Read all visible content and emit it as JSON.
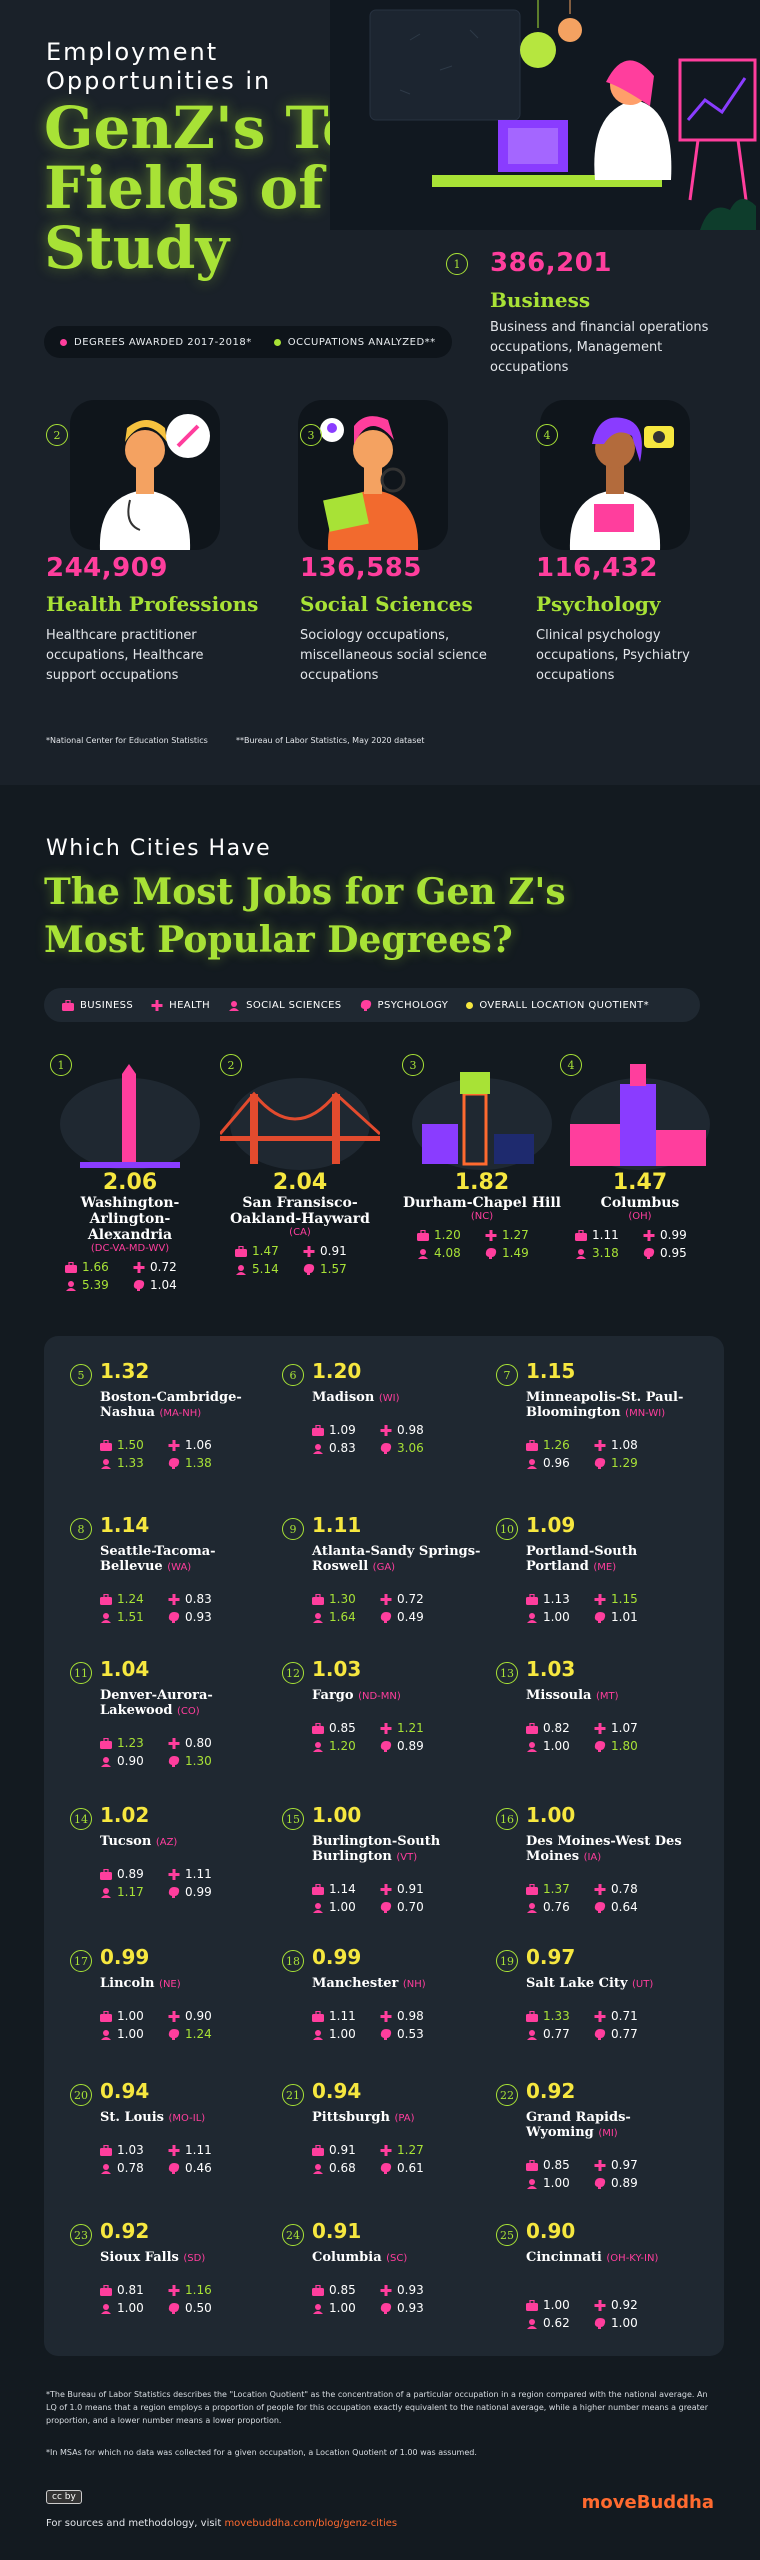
{
  "header": {
    "eyebrow": "Employment Opportunities in",
    "title": "GenZ's Top Fields of Study",
    "legend_degrees": "DEGREES AWARDED 2017-2018*",
    "legend_occupations": "OCCUPATIONS ANALYZED**"
  },
  "fields": [
    {
      "rank": "1",
      "count": "386,201",
      "name": "Business",
      "desc": "Business and financial operations occupations, Management occupations"
    },
    {
      "rank": "2",
      "count": "244,909",
      "name": "Health Professions",
      "desc": "Healthcare practitioner occupations, Healthcare support occupations"
    },
    {
      "rank": "3",
      "count": "136,585",
      "name": "Social Sciences",
      "desc": "Sociology occupations, miscellaneous social science occupations"
    },
    {
      "rank": "4",
      "count": "116,432",
      "name": "Psychology",
      "desc": "Clinical psychology occupations, Psychiatry occupations"
    }
  ],
  "footnotes": {
    "nces": "*National Center for Education Statistics",
    "bls": "**Bureau of Labor Statistics, May 2020 dataset"
  },
  "section2": {
    "eyebrow": "Which Cities Have",
    "title": "The Most Jobs for Gen Z's Most Popular Degrees?",
    "legend": [
      "BUSINESS",
      "HEALTH",
      "SOCIAL SCIENCES",
      "PSYCHOLOGY",
      "OVERALL LOCATION QUOTIENT*"
    ]
  },
  "top_cities": [
    {
      "rank": "1",
      "lq": "2.06",
      "name": "Washington-Arlington-Alexandria",
      "state": "(DC-VA-MD-WV)",
      "business": "1.66",
      "health": "0.72",
      "social": "5.39",
      "psych": "1.04"
    },
    {
      "rank": "2",
      "lq": "2.04",
      "name": "San Fransisco-Oakland-Hayward",
      "state": "(CA)",
      "business": "1.47",
      "health": "0.91",
      "social": "5.14",
      "psych": "1.57"
    },
    {
      "rank": "3",
      "lq": "1.82",
      "name": "Durham-Chapel Hill",
      "state": "(NC)",
      "business": "1.20",
      "health": "1.27",
      "social": "4.08",
      "psych": "1.49"
    },
    {
      "rank": "4",
      "lq": "1.47",
      "name": "Columbus",
      "state": "(OH)",
      "business": "1.11",
      "health": "0.99",
      "social": "3.18",
      "psych": "0.95"
    }
  ],
  "cities": [
    {
      "rank": "5",
      "lq": "1.32",
      "name": "Boston-Cambridge-Nashua",
      "state": "(MA-NH)",
      "business": "1.50",
      "health": "1.06",
      "social": "1.33",
      "psych": "1.38"
    },
    {
      "rank": "6",
      "lq": "1.20",
      "name": "Madison",
      "state": "(WI)",
      "business": "1.09",
      "health": "0.98",
      "social": "0.83",
      "psych": "3.06"
    },
    {
      "rank": "7",
      "lq": "1.15",
      "name": "Minneapolis-St. Paul-Bloomington",
      "state": "(MN-WI)",
      "business": "1.26",
      "health": "1.08",
      "social": "0.96",
      "psych": "1.29"
    },
    {
      "rank": "8",
      "lq": "1.14",
      "name": "Seattle-Tacoma-Bellevue",
      "state": "(WA)",
      "business": "1.24",
      "health": "0.83",
      "social": "1.51",
      "psych": "0.93"
    },
    {
      "rank": "9",
      "lq": "1.11",
      "name": "Atlanta-Sandy Springs-Roswell",
      "state": "(GA)",
      "business": "1.30",
      "health": "0.72",
      "social": "1.64",
      "psych": "0.49"
    },
    {
      "rank": "10",
      "lq": "1.09",
      "name": "Portland-South Portland",
      "state": "(ME)",
      "business": "1.13",
      "health": "1.15",
      "social": "1.00",
      "psych": "1.01"
    },
    {
      "rank": "11",
      "lq": "1.04",
      "name": "Denver-Aurora-Lakewood",
      "state": "(CO)",
      "business": "1.23",
      "health": "0.80",
      "social": "0.90",
      "psych": "1.30"
    },
    {
      "rank": "12",
      "lq": "1.03",
      "name": "Fargo",
      "state": "(ND-MN)",
      "business": "0.85",
      "health": "1.21",
      "social": "1.20",
      "psych": "0.89"
    },
    {
      "rank": "13",
      "lq": "1.03",
      "name": "Missoula",
      "state": "(MT)",
      "business": "0.82",
      "health": "1.07",
      "social": "1.00",
      "psych": "1.80"
    },
    {
      "rank": "14",
      "lq": "1.02",
      "name": "Tucson",
      "state": "(AZ)",
      "business": "0.89",
      "health": "1.11",
      "social": "1.17",
      "psych": "0.99"
    },
    {
      "rank": "15",
      "lq": "1.00",
      "name": "Burlington-South Burlington",
      "state": "(VT)",
      "business": "1.14",
      "health": "0.91",
      "social": "1.00",
      "psych": "0.70"
    },
    {
      "rank": "16",
      "lq": "1.00",
      "name": "Des Moines-West Des Moines",
      "state": "(IA)",
      "business": "1.37",
      "health": "0.78",
      "social": "0.76",
      "psych": "0.64"
    },
    {
      "rank": "17",
      "lq": "0.99",
      "name": "Lincoln",
      "state": "(NE)",
      "business": "1.00",
      "health": "0.90",
      "social": "1.00",
      "psych": "1.24"
    },
    {
      "rank": "18",
      "lq": "0.99",
      "name": "Manchester",
      "state": "(NH)",
      "business": "1.11",
      "health": "0.98",
      "social": "1.00",
      "psych": "0.53"
    },
    {
      "rank": "19",
      "lq": "0.97",
      "name": "Salt Lake City",
      "state": "(UT)",
      "business": "1.33",
      "health": "0.71",
      "social": "0.77",
      "psych": "0.77"
    },
    {
      "rank": "20",
      "lq": "0.94",
      "name": "St. Louis",
      "state": "(MO-IL)",
      "business": "1.03",
      "health": "1.11",
      "social": "0.78",
      "psych": "0.46"
    },
    {
      "rank": "21",
      "lq": "0.94",
      "name": "Pittsburgh",
      "state": "(PA)",
      "business": "0.91",
      "health": "1.27",
      "social": "0.68",
      "psych": "0.61"
    },
    {
      "rank": "22",
      "lq": "0.92",
      "name": "Grand Rapids-Wyoming",
      "state": "(MI)",
      "business": "0.85",
      "health": "0.97",
      "social": "1.00",
      "psych": "0.89"
    },
    {
      "rank": "23",
      "lq": "0.92",
      "name": "Sioux Falls",
      "state": "(SD)",
      "business": "0.81",
      "health": "1.16",
      "social": "1.00",
      "psych": "0.50"
    },
    {
      "rank": "24",
      "lq": "0.91",
      "name": "Columbia",
      "state": "(SC)",
      "business": "0.85",
      "health": "0.93",
      "social": "1.00",
      "psych": "0.93"
    },
    {
      "rank": "25",
      "lq": "0.90",
      "name": "Cincinnati",
      "state": "(OH-KY-IN)",
      "business": "1.00",
      "health": "0.92",
      "social": "0.62",
      "psych": "1.00"
    }
  ],
  "notes": {
    "lq_note": "*The Bureau of Labor Statistics describes the \"Location Quotient\" as the concentration of a particular occupation in a region compared with the national average. An LQ of 1.0 means that a region employs a proportion of people for this occupation exactly equivalent to the national average, while a higher number means a greater proportion, and a lower number means a lower proportion.",
    "msa_note": "*In MSAs for which no data was collected for a given occupation, a Location Quotient of 1.00 was assumed.",
    "sources_prefix": "For sources and methodology, visit ",
    "sources_link": "movebuddha.com/blog/genz-cities",
    "license": "cc by",
    "logo": "moveBuddha"
  },
  "colors": {
    "lime": "#a8e236",
    "pink": "#ff3e9d",
    "yellow": "#f6e73f",
    "bg": "#131a20",
    "panel": "#1f2831"
  }
}
